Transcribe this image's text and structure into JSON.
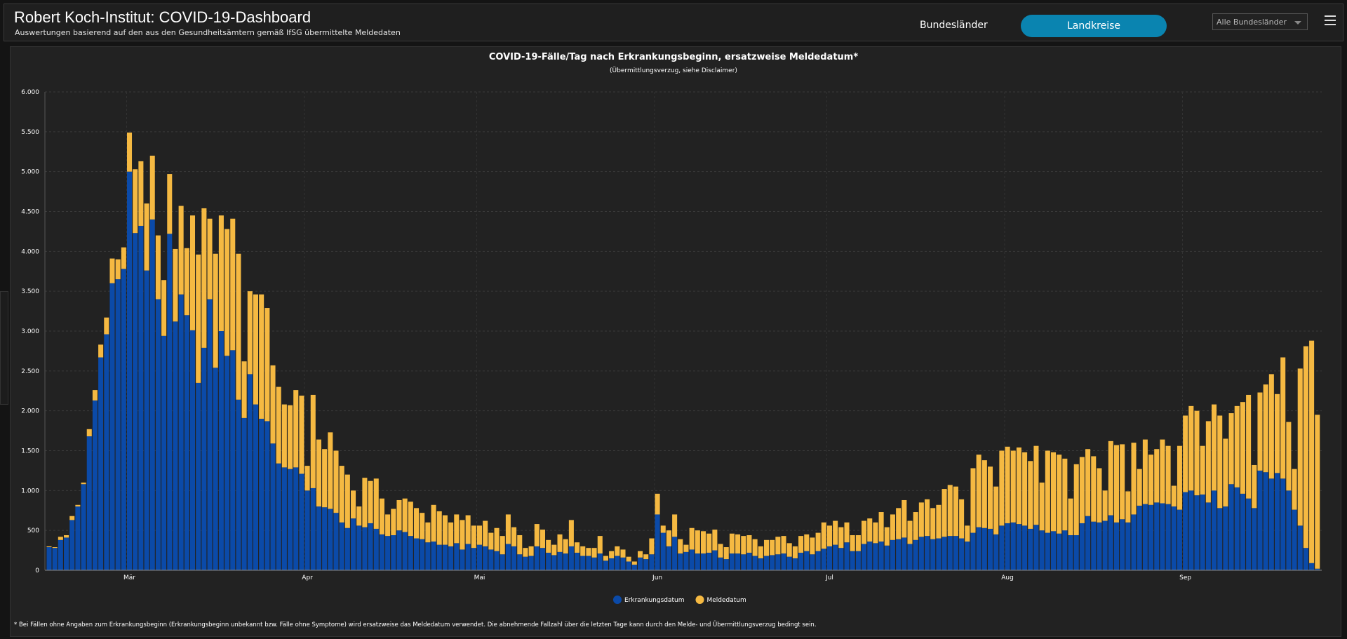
{
  "header": {
    "title": "Robert Koch-Institut: COVID-19-Dashboard",
    "subtitle": "Auswertungen basierend auf den aus den Gesundheitsämtern gemäß IfSG übermittelte Meldedaten"
  },
  "nav": {
    "bundeslaender": "Bundesländer",
    "landkreise": "Landkreise",
    "dropdown": "Alle Bundesländer"
  },
  "chart_data": {
    "type": "bar",
    "stacked": true,
    "title": "COVID-19-Fälle/Tag nach Erkrankungsbeginn, ersatzweise Meldedatum*",
    "subtitle": "(Übermittlungsverzug, siehe Disclaimer)",
    "footnote": "* Bei Fällen ohne Angaben zum Erkrankungsbeginn (Erkrankungsbeginn unbekannt bzw. Fälle ohne Symptome) wird ersatzweise das Meldedatum verwendet. Die abnehmende Fallzahl über die letzten Tage kann durch den Melde- und Übermittlungsverzug bedingt sein.",
    "categories": [
      null,
      null,
      null,
      null,
      null,
      null,
      null,
      null,
      null,
      null,
      null,
      null,
      null,
      null,
      "Mär",
      null,
      null,
      null,
      null,
      null,
      null,
      null,
      null,
      null,
      null,
      null,
      null,
      null,
      null,
      null,
      null,
      null,
      null,
      null,
      null,
      null,
      null,
      null,
      null,
      null,
      null,
      null,
      null,
      null,
      null,
      "Apr",
      null,
      null,
      null,
      null,
      null,
      null,
      null,
      null,
      null,
      null,
      null,
      null,
      null,
      null,
      null,
      null,
      null,
      null,
      null,
      null,
      null,
      null,
      null,
      null,
      null,
      null,
      null,
      null,
      null,
      "Mai",
      null,
      null,
      null,
      null,
      null,
      null,
      null,
      null,
      null,
      null,
      null,
      null,
      null,
      null,
      null,
      null,
      null,
      null,
      null,
      null,
      null,
      null,
      null,
      null,
      null,
      null,
      null,
      null,
      null,
      null,
      "Jun",
      null,
      null,
      null,
      null,
      null,
      null,
      null,
      null,
      null,
      null,
      null,
      null,
      null,
      null,
      null,
      null,
      null,
      null,
      null,
      null,
      null,
      null,
      null,
      null,
      null,
      null,
      null,
      null,
      null,
      "Jul",
      null,
      null,
      null,
      null,
      null,
      null,
      null,
      null,
      null,
      null,
      null,
      null,
      null,
      null,
      null,
      null,
      null,
      null,
      null,
      null,
      null,
      null,
      null,
      null,
      null,
      null,
      null,
      null,
      null,
      null,
      "Aug",
      null,
      null,
      null,
      null,
      null,
      null,
      null,
      null,
      null,
      null,
      null,
      null,
      null,
      null,
      null,
      null,
      null,
      null,
      null,
      null,
      null,
      null,
      null,
      null,
      null,
      null,
      null,
      null,
      null,
      null,
      "Sep",
      null,
      null,
      null,
      null,
      null,
      null,
      null,
      null,
      null,
      null,
      null,
      null,
      null,
      null,
      null,
      null,
      null,
      null,
      null,
      null,
      null,
      null,
      null
    ],
    "series": [
      {
        "name": "Erkrankungsdatum",
        "color": "#0b4aa8",
        "values": [
          290,
          280,
          380,
          410,
          630,
          800,
          1080,
          1680,
          2130,
          2670,
          2960,
          3600,
          3650,
          3780,
          5000,
          4230,
          4320,
          3760,
          4400,
          3400,
          2940,
          4220,
          3120,
          3460,
          3200,
          3010,
          2350,
          2790,
          3400,
          2540,
          3000,
          2690,
          2760,
          2140,
          1910,
          2460,
          2080,
          1900,
          1870,
          1590,
          1340,
          1290,
          1270,
          1290,
          1210,
          1000,
          1030,
          800,
          790,
          770,
          720,
          600,
          530,
          650,
          560,
          540,
          590,
          520,
          450,
          430,
          440,
          500,
          480,
          430,
          400,
          390,
          350,
          360,
          320,
          320,
          300,
          340,
          260,
          330,
          280,
          320,
          300,
          260,
          240,
          200,
          330,
          300,
          200,
          170,
          180,
          300,
          280,
          220,
          190,
          230,
          210,
          300,
          220,
          180,
          180,
          160,
          210,
          120,
          150,
          180,
          160,
          110,
          70,
          160,
          140,
          200,
          700,
          470,
          300,
          420,
          210,
          230,
          260,
          210,
          210,
          220,
          250,
          160,
          140,
          210,
          210,
          200,
          220,
          180,
          150,
          180,
          190,
          200,
          210,
          170,
          150,
          220,
          240,
          200,
          240,
          270,
          300,
          320,
          280,
          350,
          240,
          240,
          330,
          360,
          340,
          360,
          310,
          380,
          390,
          410,
          330,
          380,
          420,
          430,
          390,
          400,
          420,
          430,
          430,
          400,
          360,
          470,
          540,
          530,
          520,
          450,
          560,
          590,
          600,
          580,
          560,
          520,
          570,
          500,
          470,
          490,
          460,
          500,
          440,
          440,
          590,
          680,
          610,
          600,
          620,
          690,
          600,
          640,
          600,
          700,
          810,
          830,
          820,
          850,
          840,
          830,
          800,
          760,
          980,
          1000,
          940,
          950,
          850,
          1000,
          780,
          800,
          1080,
          1040,
          960,
          900,
          780,
          1250,
          1230,
          1150,
          1220,
          1150,
          1000,
          760,
          560,
          280,
          90,
          20
        ]
      },
      {
        "name": "Meldedatum",
        "color": "#f5b942",
        "values": [
          10,
          10,
          40,
          30,
          50,
          20,
          20,
          90,
          130,
          160,
          210,
          310,
          250,
          270,
          490,
          800,
          810,
          840,
          800,
          800,
          700,
          750,
          910,
          1110,
          840,
          1440,
          1610,
          1750,
          1010,
          1430,
          1450,
          1590,
          1650,
          1830,
          710,
          1040,
          1380,
          1560,
          1420,
          980,
          960,
          790,
          800,
          970,
          980,
          310,
          1170,
          840,
          730,
          960,
          780,
          710,
          670,
          350,
          240,
          620,
          530,
          630,
          450,
          270,
          330,
          380,
          420,
          430,
          380,
          330,
          250,
          460,
          420,
          370,
          300,
          360,
          370,
          360,
          280,
          240,
          320,
          210,
          290,
          230,
          370,
          240,
          240,
          110,
          120,
          280,
          230,
          160,
          130,
          220,
          180,
          330,
          130,
          120,
          100,
          120,
          220,
          60,
          90,
          120,
          100,
          60,
          40,
          80,
          60,
          200,
          260,
          90,
          200,
          280,
          180,
          90,
          270,
          290,
          280,
          240,
          260,
          170,
          150,
          250,
          240,
          230,
          220,
          210,
          150,
          200,
          190,
          220,
          220,
          170,
          150,
          210,
          210,
          210,
          230,
          330,
          260,
          300,
          260,
          250,
          200,
          200,
          290,
          290,
          260,
          370,
          230,
          320,
          390,
          470,
          290,
          350,
          430,
          460,
          390,
          420,
          600,
          640,
          620,
          490,
          200,
          810,
          910,
          850,
          780,
          600,
          940,
          960,
          900,
          960,
          920,
          850,
          990,
          600,
          1030,
          990,
          990,
          900,
          460,
          890,
          830,
          840,
          820,
          680,
          380,
          930,
          970,
          940,
          390,
          900,
          460,
          810,
          630,
          670,
          800,
          730,
          260,
          800,
          960,
          1060,
          1060,
          610,
          1020,
          1080,
          1160,
          850,
          890,
          1020,
          1150,
          1300,
          540,
          980,
          1100,
          1310,
          990,
          1520,
          860,
          510,
          1970,
          2530,
          2790,
          1930
        ]
      }
    ],
    "ylim": [
      0,
      6000
    ],
    "yticks": [
      0,
      500,
      {
        "value": 1000,
        "label": "1.000"
      },
      {
        "value": 1500,
        "label": "1.500"
      },
      {
        "value": 2000,
        "label": "2.000"
      },
      {
        "value": 2500,
        "label": "2.500"
      },
      {
        "value": 3000,
        "label": "3.000"
      },
      {
        "value": 3500,
        "label": "3.500"
      },
      {
        "value": 4000,
        "label": "4.000"
      },
      {
        "value": 4500,
        "label": "4.500"
      },
      {
        "value": 5000,
        "label": "5.000"
      },
      {
        "value": 5500,
        "label": "5.500"
      },
      {
        "value": 6000,
        "label": "6.000"
      }
    ],
    "grid": true,
    "legend": "bottom"
  }
}
